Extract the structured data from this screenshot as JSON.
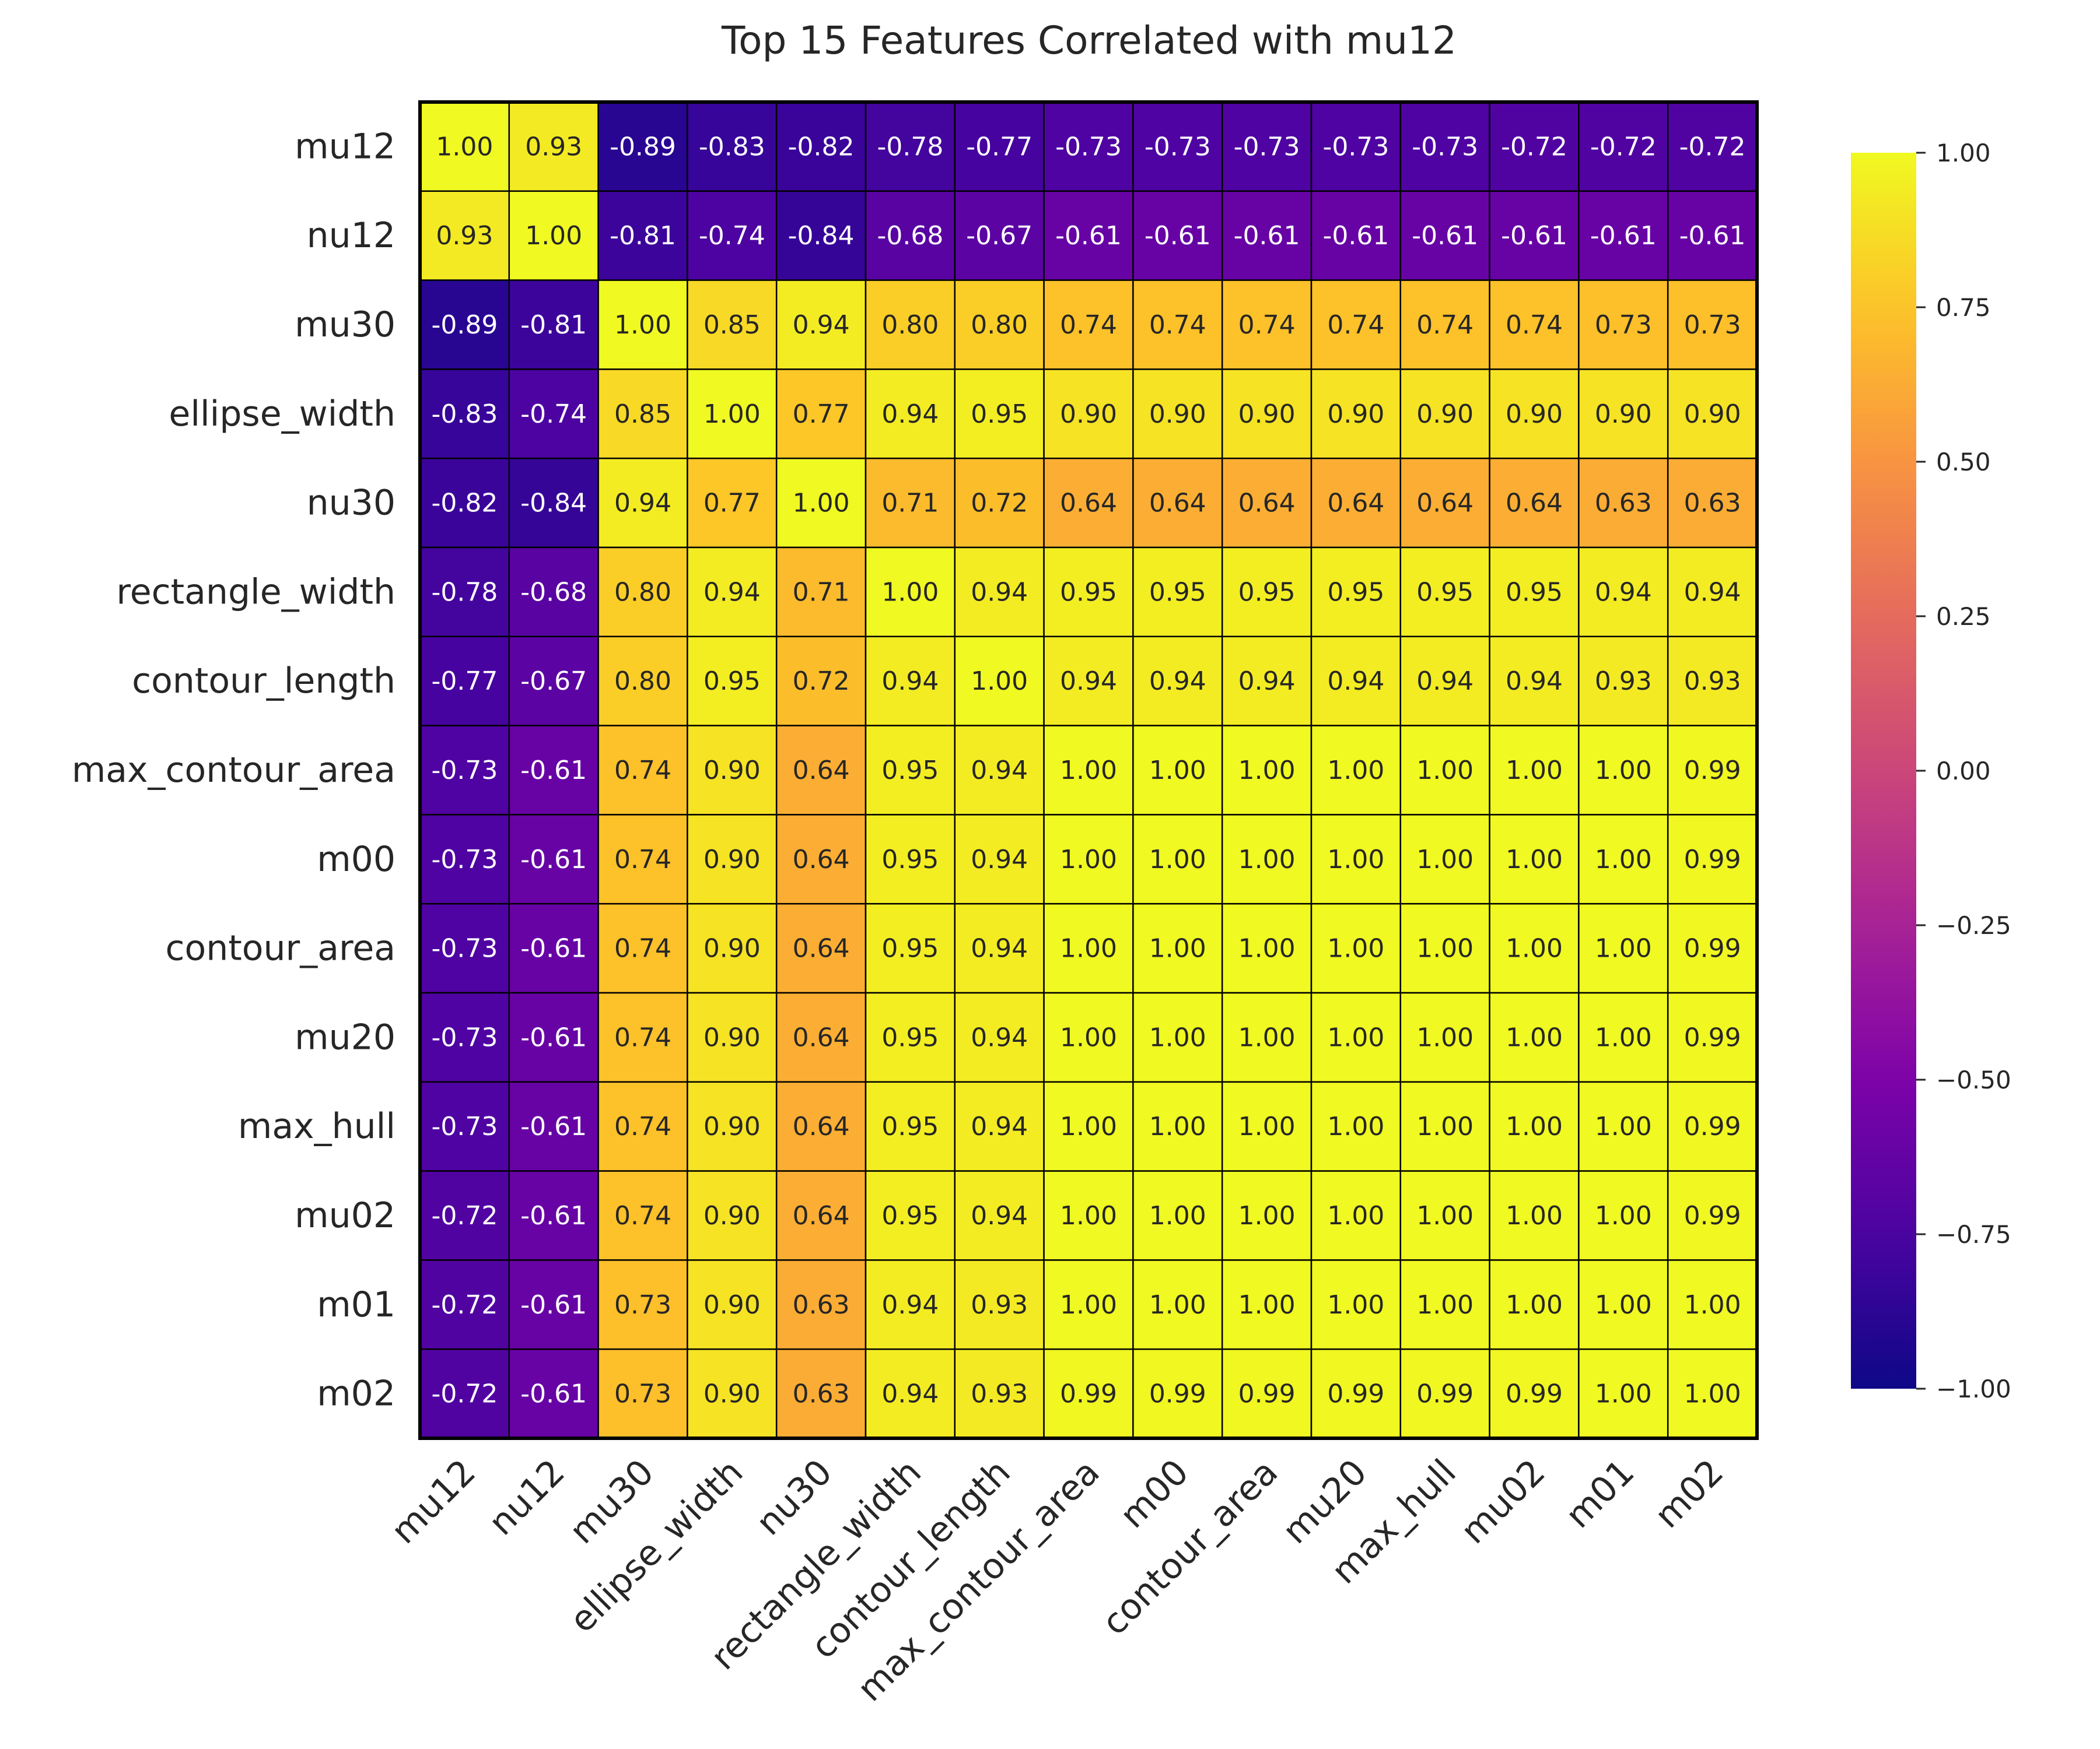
{
  "chart_data": {
    "type": "heatmap",
    "title": "Top 15 Features Correlated with mu12",
    "xlabel": "",
    "ylabel": "",
    "labels": [
      "mu12",
      "nu12",
      "mu30",
      "ellipse_width",
      "nu30",
      "rectangle_width",
      "contour_length",
      "max_contour_area",
      "m00",
      "contour_area",
      "mu20",
      "max_hull",
      "mu02",
      "m01",
      "m02"
    ],
    "values": [
      [
        1.0,
        0.93,
        -0.89,
        -0.83,
        -0.82,
        -0.78,
        -0.77,
        -0.73,
        -0.73,
        -0.73,
        -0.73,
        -0.73,
        -0.72,
        -0.72,
        -0.72
      ],
      [
        0.93,
        1.0,
        -0.81,
        -0.74,
        -0.84,
        -0.68,
        -0.67,
        -0.61,
        -0.61,
        -0.61,
        -0.61,
        -0.61,
        -0.61,
        -0.61,
        -0.61
      ],
      [
        -0.89,
        -0.81,
        1.0,
        0.85,
        0.94,
        0.8,
        0.8,
        0.74,
        0.74,
        0.74,
        0.74,
        0.74,
        0.74,
        0.73,
        0.73
      ],
      [
        -0.83,
        -0.74,
        0.85,
        1.0,
        0.77,
        0.94,
        0.95,
        0.9,
        0.9,
        0.9,
        0.9,
        0.9,
        0.9,
        0.9,
        0.9
      ],
      [
        -0.82,
        -0.84,
        0.94,
        0.77,
        1.0,
        0.71,
        0.72,
        0.64,
        0.64,
        0.64,
        0.64,
        0.64,
        0.64,
        0.63,
        0.63
      ],
      [
        -0.78,
        -0.68,
        0.8,
        0.94,
        0.71,
        1.0,
        0.94,
        0.95,
        0.95,
        0.95,
        0.95,
        0.95,
        0.95,
        0.94,
        0.94
      ],
      [
        -0.77,
        -0.67,
        0.8,
        0.95,
        0.72,
        0.94,
        1.0,
        0.94,
        0.94,
        0.94,
        0.94,
        0.94,
        0.94,
        0.93,
        0.93
      ],
      [
        -0.73,
        -0.61,
        0.74,
        0.9,
        0.64,
        0.95,
        0.94,
        1.0,
        1.0,
        1.0,
        1.0,
        1.0,
        1.0,
        1.0,
        0.99
      ],
      [
        -0.73,
        -0.61,
        0.74,
        0.9,
        0.64,
        0.95,
        0.94,
        1.0,
        1.0,
        1.0,
        1.0,
        1.0,
        1.0,
        1.0,
        0.99
      ],
      [
        -0.73,
        -0.61,
        0.74,
        0.9,
        0.64,
        0.95,
        0.94,
        1.0,
        1.0,
        1.0,
        1.0,
        1.0,
        1.0,
        1.0,
        0.99
      ],
      [
        -0.73,
        -0.61,
        0.74,
        0.9,
        0.64,
        0.95,
        0.94,
        1.0,
        1.0,
        1.0,
        1.0,
        1.0,
        1.0,
        1.0,
        0.99
      ],
      [
        -0.73,
        -0.61,
        0.74,
        0.9,
        0.64,
        0.95,
        0.94,
        1.0,
        1.0,
        1.0,
        1.0,
        1.0,
        1.0,
        1.0,
        0.99
      ],
      [
        -0.72,
        -0.61,
        0.74,
        0.9,
        0.64,
        0.95,
        0.94,
        1.0,
        1.0,
        1.0,
        1.0,
        1.0,
        1.0,
        1.0,
        0.99
      ],
      [
        -0.72,
        -0.61,
        0.73,
        0.9,
        0.63,
        0.94,
        0.93,
        1.0,
        1.0,
        1.0,
        1.0,
        1.0,
        1.0,
        1.0,
        1.0
      ],
      [
        -0.72,
        -0.61,
        0.73,
        0.9,
        0.63,
        0.94,
        0.93,
        0.99,
        0.99,
        0.99,
        0.99,
        0.99,
        0.99,
        1.0,
        1.0
      ]
    ],
    "colorscale": "plasma",
    "vmin": -1.0,
    "vmax": 1.0,
    "colorbar_ticks": [
      "1.00",
      "0.75",
      "0.50",
      "0.25",
      "0.00",
      "−0.25",
      "−0.50",
      "−0.75",
      "−1.00"
    ],
    "colorbar_tick_values": [
      1.0,
      0.75,
      0.5,
      0.25,
      0.0,
      -0.25,
      -0.5,
      -0.75,
      -1.0
    ],
    "grid": true,
    "legend": "colorbar-right"
  }
}
